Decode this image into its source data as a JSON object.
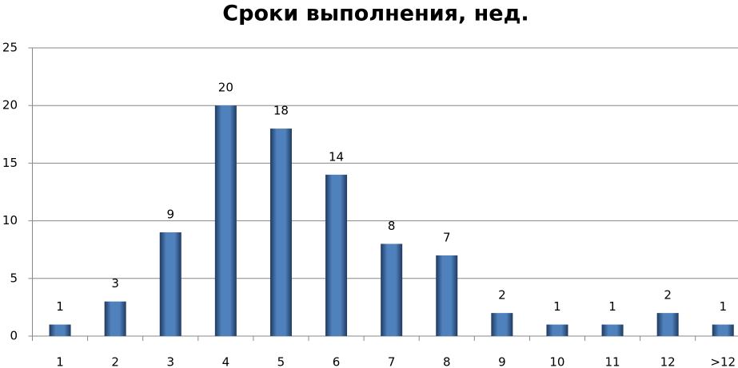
{
  "chart_data": {
    "type": "bar",
    "title": "Сроки выполнения, нед.",
    "categories": [
      "1",
      "2",
      "3",
      "4",
      "5",
      "6",
      "7",
      "8",
      "9",
      "10",
      "11",
      "12",
      ">12"
    ],
    "values": [
      1,
      3,
      9,
      20,
      18,
      14,
      8,
      7,
      2,
      1,
      1,
      2,
      1
    ],
    "color": "#4f81bd",
    "ylim": [
      0,
      25
    ],
    "yticks": [
      0,
      5,
      10,
      15,
      20,
      25
    ],
    "grid": true,
    "data_labels": true
  }
}
